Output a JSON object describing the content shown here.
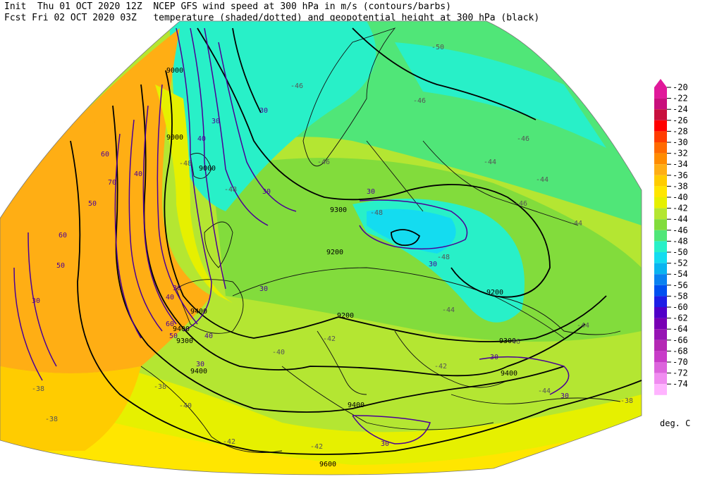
{
  "header": {
    "line1": "Init  Thu 01 OCT 2020 12Z  NCEP GFS wind speed at 300 hPa in m/s (contours/barbs)",
    "line2": "Fcst Fri 02 OCT 2020 03Z   temperature (shaded/dotted) and geopotential height at 300 hPa (black)"
  },
  "legend": {
    "units": "deg. C",
    "levels": [
      {
        "label": "-20",
        "color": "#e0199a"
      },
      {
        "label": "-22",
        "color": "#c80f7c"
      },
      {
        "label": "-24",
        "color": "#c8103e"
      },
      {
        "label": "-26",
        "color": "#ff0000"
      },
      {
        "label": "-28",
        "color": "#ff3c00"
      },
      {
        "label": "-30",
        "color": "#ff6a00"
      },
      {
        "label": "-32",
        "color": "#ff8c00"
      },
      {
        "label": "-34",
        "color": "#ffae14"
      },
      {
        "label": "-36",
        "color": "#ffcc00"
      },
      {
        "label": "-38",
        "color": "#ffe600"
      },
      {
        "label": "-40",
        "color": "#e6f000"
      },
      {
        "label": "-42",
        "color": "#b4e632"
      },
      {
        "label": "-44",
        "color": "#82dc3c"
      },
      {
        "label": "-46",
        "color": "#50e678"
      },
      {
        "label": "-48",
        "color": "#28f0c8"
      },
      {
        "label": "-50",
        "color": "#14dcf0"
      },
      {
        "label": "-52",
        "color": "#0ab4f0"
      },
      {
        "label": "-54",
        "color": "#0a82f0"
      },
      {
        "label": "-56",
        "color": "#0050f0"
      },
      {
        "label": "-58",
        "color": "#1e1ee6"
      },
      {
        "label": "-60",
        "color": "#5000c8"
      },
      {
        "label": "-62",
        "color": "#7800b4"
      },
      {
        "label": "-64",
        "color": "#9614b4"
      },
      {
        "label": "-66",
        "color": "#b428b4"
      },
      {
        "label": "-68",
        "color": "#c83cc8"
      },
      {
        "label": "-70",
        "color": "#dc64dc"
      },
      {
        "label": "-72",
        "color": "#f08cf0"
      },
      {
        "label": "-74",
        "color": "#ffb4ff"
      }
    ]
  },
  "map_labels": {
    "heights": [
      "9000",
      "9000",
      "9000",
      "9300",
      "9200",
      "9200",
      "9200",
      "9400",
      "9300",
      "9400",
      "9400",
      "9400",
      "9400",
      "9600",
      "9300"
    ],
    "temps": [
      "-50",
      "-46",
      "-46",
      "-46",
      "-44",
      "-44",
      "-44",
      "-44",
      "-44",
      "-46",
      "-48",
      "-48",
      "-48",
      "-40",
      "-42",
      "-42",
      "-42",
      "-42",
      "-38",
      "-38",
      "-38",
      "-40",
      "-38",
      "-48",
      "-46",
      "-46",
      "-44"
    ],
    "winds": [
      "30",
      "40",
      "30",
      "30",
      "30",
      "30",
      "30",
      "30",
      "30",
      "30",
      "30",
      "40",
      "60",
      "70",
      "50",
      "60",
      "50",
      "40",
      "60",
      "50",
      "40",
      "30",
      "30"
    ]
  },
  "colors": {
    "orange": "#ffae14",
    "yellow": "#ffe600",
    "yellowgreen": "#b4e632",
    "green": "#82dc3c",
    "cyan": "#28f0c8",
    "jet": "#4b0096"
  }
}
